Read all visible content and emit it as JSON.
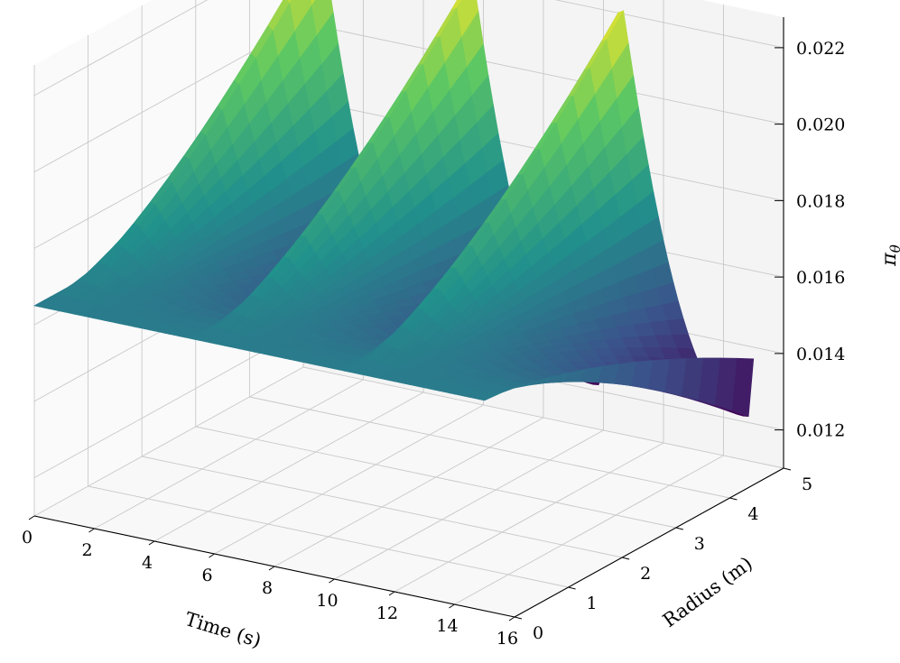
{
  "chart_data": {
    "type": "surface3d",
    "title": "",
    "xlabel": "Time (s)",
    "ylabel": "Radius (m)",
    "zlabel": "π",
    "zlabel_subscript": "θ",
    "xlim": [
      0,
      16
    ],
    "ylim": [
      0,
      5
    ],
    "zlim": [
      0.011,
      0.0228
    ],
    "x_ticks": [
      "0",
      "2",
      "4",
      "6",
      "8",
      "10",
      "12",
      "14",
      "16"
    ],
    "y_ticks": [
      "0",
      "1",
      "2",
      "3",
      "4",
      "5"
    ],
    "z_ticks": [
      "0.012",
      "0.014",
      "0.016",
      "0.018",
      "0.020",
      "0.022"
    ],
    "grid": true,
    "colormap": "viridis",
    "colormap_stops": [
      "#440154",
      "#3b528b",
      "#21918c",
      "#5ec962",
      "#fde725"
    ],
    "surface": {
      "time_range": [
        0,
        15
      ],
      "radius_range": [
        0,
        5
      ],
      "cycles": 3,
      "period": 5,
      "value_at_radius_0": 0.0165,
      "peak_values_at_radius_5": [
        0.0225,
        0.0225,
        0.0225
      ],
      "trough_values_at_radius_5": [
        0.0122,
        0.0122
      ],
      "end_value_at_radius_5": 0.0135
    }
  }
}
